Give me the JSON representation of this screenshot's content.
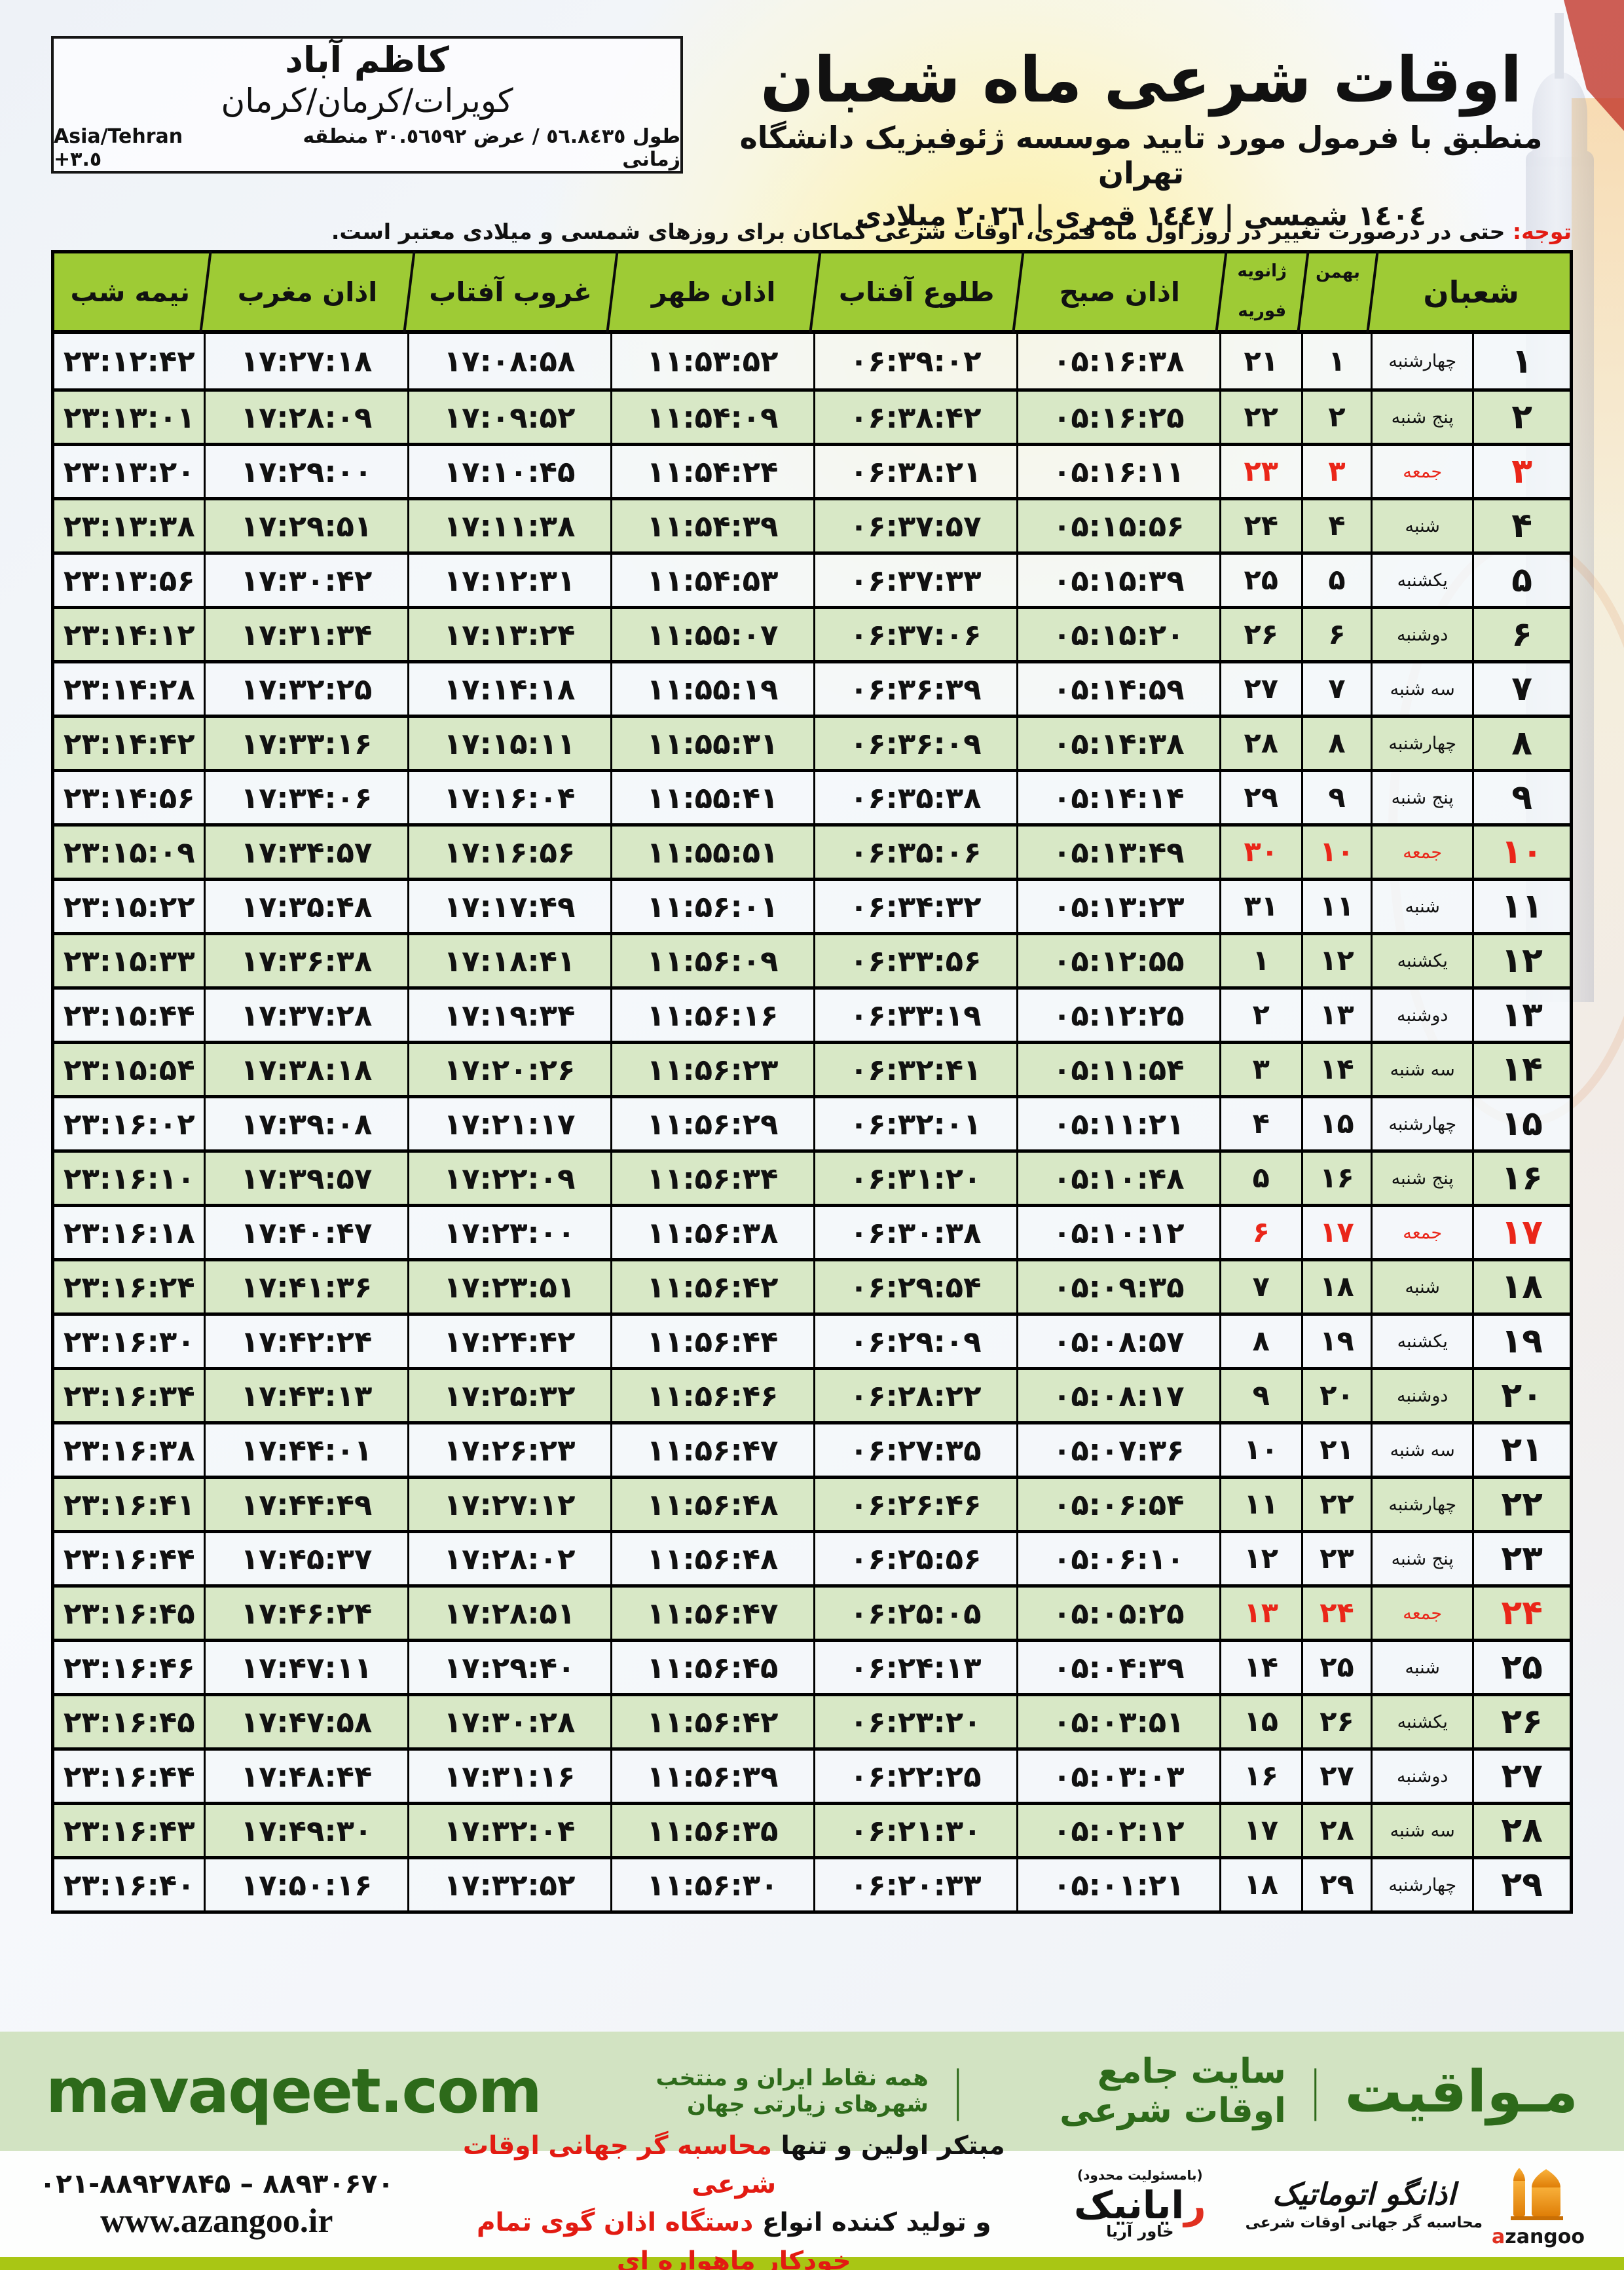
{
  "colors": {
    "header_green": "#9ecb35",
    "row_green": "#d8e8c6",
    "friday_red": "#ea2619",
    "footer_bar_bg": "#d2e3c2",
    "footer_text_green": "#2d6a1a",
    "bottom_strip_green": "#a9c614",
    "azangoo_orange": "#f59a1e"
  },
  "header": {
    "title": "اوقات شرعی ماه شعبان",
    "subtitle": "منطبق با فرمول مورد تایید موسسه ژئوفیزیک دانشگاه تهران",
    "date_line": "١٤٠٤ شمسی | ١٤٤٧ قمری | ٢٠٢٦ میلادی"
  },
  "location": {
    "name": "کاظم آباد",
    "region": "کویرات/کرمان/کرمان",
    "coords_fa": "طول ٥٦.٨٤٣٥ / عرض ٣٠.٥٦٥٩٢ منطقه زمانی",
    "coords_tz": "Asia/Tehran +٣.٥"
  },
  "notice": {
    "label": "توجه:",
    "text": " حتی در درصورت تغییر در روز اول ماه قمری، اوقات شرعی کماکان برای روزهای شمسی و میلادی معتبر است."
  },
  "table": {
    "col_headers": {
      "sha": "شعبان",
      "bahman": "بهمن",
      "jan": "ژانویه",
      "feb": "فوریه",
      "fajr": "اذان صبح",
      "sunrise": "طلوع آفتاب",
      "dhuhr": "اذان ظهر",
      "sunset": "غروب آفتاب",
      "maghrib": "اذان مغرب",
      "midnight": "نیمه شب"
    },
    "rows": [
      {
        "sha": "۱",
        "weekday": "چهارشنبه",
        "bahman": "۱",
        "greg": "۲۱",
        "fajr": "۰۵:۱۶:۳۸",
        "sunrise": "۰۶:۳۹:۰۲",
        "dhuhr": "۱۱:۵۳:۵۲",
        "sunset": "۱۷:۰۸:۵۸",
        "maghrib": "۱۷:۲۷:۱۸",
        "midnight": "۲۳:۱۲:۴۲",
        "friday": false
      },
      {
        "sha": "۲",
        "weekday": "پنج شنبه",
        "bahman": "۲",
        "greg": "۲۲",
        "fajr": "۰۵:۱۶:۲۵",
        "sunrise": "۰۶:۳۸:۴۲",
        "dhuhr": "۱۱:۵۴:۰۹",
        "sunset": "۱۷:۰۹:۵۲",
        "maghrib": "۱۷:۲۸:۰۹",
        "midnight": "۲۳:۱۳:۰۱",
        "friday": false
      },
      {
        "sha": "۳",
        "weekday": "جمعه",
        "bahman": "۳",
        "greg": "۲۳",
        "fajr": "۰۵:۱۶:۱۱",
        "sunrise": "۰۶:۳۸:۲۱",
        "dhuhr": "۱۱:۵۴:۲۴",
        "sunset": "۱۷:۱۰:۴۵",
        "maghrib": "۱۷:۲۹:۰۰",
        "midnight": "۲۳:۱۳:۲۰",
        "friday": true
      },
      {
        "sha": "۴",
        "weekday": "شنبه",
        "bahman": "۴",
        "greg": "۲۴",
        "fajr": "۰۵:۱۵:۵۶",
        "sunrise": "۰۶:۳۷:۵۷",
        "dhuhr": "۱۱:۵۴:۳۹",
        "sunset": "۱۷:۱۱:۳۸",
        "maghrib": "۱۷:۲۹:۵۱",
        "midnight": "۲۳:۱۳:۳۸",
        "friday": false
      },
      {
        "sha": "۵",
        "weekday": "یکشنبه",
        "bahman": "۵",
        "greg": "۲۵",
        "fajr": "۰۵:۱۵:۳۹",
        "sunrise": "۰۶:۳۷:۳۳",
        "dhuhr": "۱۱:۵۴:۵۳",
        "sunset": "۱۷:۱۲:۳۱",
        "maghrib": "۱۷:۳۰:۴۲",
        "midnight": "۲۳:۱۳:۵۶",
        "friday": false
      },
      {
        "sha": "۶",
        "weekday": "دوشنبه",
        "bahman": "۶",
        "greg": "۲۶",
        "fajr": "۰۵:۱۵:۲۰",
        "sunrise": "۰۶:۳۷:۰۶",
        "dhuhr": "۱۱:۵۵:۰۷",
        "sunset": "۱۷:۱۳:۲۴",
        "maghrib": "۱۷:۳۱:۳۴",
        "midnight": "۲۳:۱۴:۱۲",
        "friday": false
      },
      {
        "sha": "۷",
        "weekday": "سه شنبه",
        "bahman": "۷",
        "greg": "۲۷",
        "fajr": "۰۵:۱۴:۵۹",
        "sunrise": "۰۶:۳۶:۳۹",
        "dhuhr": "۱۱:۵۵:۱۹",
        "sunset": "۱۷:۱۴:۱۸",
        "maghrib": "۱۷:۳۲:۲۵",
        "midnight": "۲۳:۱۴:۲۸",
        "friday": false
      },
      {
        "sha": "۸",
        "weekday": "چهارشنبه",
        "bahman": "۸",
        "greg": "۲۸",
        "fajr": "۰۵:۱۴:۳۸",
        "sunrise": "۰۶:۳۶:۰۹",
        "dhuhr": "۱۱:۵۵:۳۱",
        "sunset": "۱۷:۱۵:۱۱",
        "maghrib": "۱۷:۳۳:۱۶",
        "midnight": "۲۳:۱۴:۴۲",
        "friday": false
      },
      {
        "sha": "۹",
        "weekday": "پنج شنبه",
        "bahman": "۹",
        "greg": "۲۹",
        "fajr": "۰۵:۱۴:۱۴",
        "sunrise": "۰۶:۳۵:۳۸",
        "dhuhr": "۱۱:۵۵:۴۱",
        "sunset": "۱۷:۱۶:۰۴",
        "maghrib": "۱۷:۳۴:۰۶",
        "midnight": "۲۳:۱۴:۵۶",
        "friday": false
      },
      {
        "sha": "۱۰",
        "weekday": "جمعه",
        "bahman": "۱۰",
        "greg": "۳۰",
        "fajr": "۰۵:۱۳:۴۹",
        "sunrise": "۰۶:۳۵:۰۶",
        "dhuhr": "۱۱:۵۵:۵۱",
        "sunset": "۱۷:۱۶:۵۶",
        "maghrib": "۱۷:۳۴:۵۷",
        "midnight": "۲۳:۱۵:۰۹",
        "friday": true
      },
      {
        "sha": "۱۱",
        "weekday": "شنبه",
        "bahman": "۱۱",
        "greg": "۳۱",
        "fajr": "۰۵:۱۳:۲۳",
        "sunrise": "۰۶:۳۴:۳۲",
        "dhuhr": "۱۱:۵۶:۰۱",
        "sunset": "۱۷:۱۷:۴۹",
        "maghrib": "۱۷:۳۵:۴۸",
        "midnight": "۲۳:۱۵:۲۲",
        "friday": false
      },
      {
        "sha": "۱۲",
        "weekday": "یکشنبه",
        "bahman": "۱۲",
        "greg": "۱",
        "fajr": "۰۵:۱۲:۵۵",
        "sunrise": "۰۶:۳۳:۵۶",
        "dhuhr": "۱۱:۵۶:۰۹",
        "sunset": "۱۷:۱۸:۴۱",
        "maghrib": "۱۷:۳۶:۳۸",
        "midnight": "۲۳:۱۵:۳۳",
        "friday": false
      },
      {
        "sha": "۱۳",
        "weekday": "دوشنبه",
        "bahman": "۱۳",
        "greg": "۲",
        "fajr": "۰۵:۱۲:۲۵",
        "sunrise": "۰۶:۳۳:۱۹",
        "dhuhr": "۱۱:۵۶:۱۶",
        "sunset": "۱۷:۱۹:۳۴",
        "maghrib": "۱۷:۳۷:۲۸",
        "midnight": "۲۳:۱۵:۴۴",
        "friday": false
      },
      {
        "sha": "۱۴",
        "weekday": "سه شنبه",
        "bahman": "۱۴",
        "greg": "۳",
        "fajr": "۰۵:۱۱:۵۴",
        "sunrise": "۰۶:۳۲:۴۱",
        "dhuhr": "۱۱:۵۶:۲۳",
        "sunset": "۱۷:۲۰:۲۶",
        "maghrib": "۱۷:۳۸:۱۸",
        "midnight": "۲۳:۱۵:۵۴",
        "friday": false
      },
      {
        "sha": "۱۵",
        "weekday": "چهارشنبه",
        "bahman": "۱۵",
        "greg": "۴",
        "fajr": "۰۵:۱۱:۲۱",
        "sunrise": "۰۶:۳۲:۰۱",
        "dhuhr": "۱۱:۵۶:۲۹",
        "sunset": "۱۷:۲۱:۱۷",
        "maghrib": "۱۷:۳۹:۰۸",
        "midnight": "۲۳:۱۶:۰۲",
        "friday": false
      },
      {
        "sha": "۱۶",
        "weekday": "پنج شنبه",
        "bahman": "۱۶",
        "greg": "۵",
        "fajr": "۰۵:۱۰:۴۸",
        "sunrise": "۰۶:۳۱:۲۰",
        "dhuhr": "۱۱:۵۶:۳۴",
        "sunset": "۱۷:۲۲:۰۹",
        "maghrib": "۱۷:۳۹:۵۷",
        "midnight": "۲۳:۱۶:۱۰",
        "friday": false
      },
      {
        "sha": "۱۷",
        "weekday": "جمعه",
        "bahman": "۱۷",
        "greg": "۶",
        "fajr": "۰۵:۱۰:۱۲",
        "sunrise": "۰۶:۳۰:۳۸",
        "dhuhr": "۱۱:۵۶:۳۸",
        "sunset": "۱۷:۲۳:۰۰",
        "maghrib": "۱۷:۴۰:۴۷",
        "midnight": "۲۳:۱۶:۱۸",
        "friday": true
      },
      {
        "sha": "۱۸",
        "weekday": "شنبه",
        "bahman": "۱۸",
        "greg": "۷",
        "fajr": "۰۵:۰۹:۳۵",
        "sunrise": "۰۶:۲۹:۵۴",
        "dhuhr": "۱۱:۵۶:۴۲",
        "sunset": "۱۷:۲۳:۵۱",
        "maghrib": "۱۷:۴۱:۳۶",
        "midnight": "۲۳:۱۶:۲۴",
        "friday": false
      },
      {
        "sha": "۱۹",
        "weekday": "یکشنبه",
        "bahman": "۱۹",
        "greg": "۸",
        "fajr": "۰۵:۰۸:۵۷",
        "sunrise": "۰۶:۲۹:۰۹",
        "dhuhr": "۱۱:۵۶:۴۴",
        "sunset": "۱۷:۲۴:۴۲",
        "maghrib": "۱۷:۴۲:۲۴",
        "midnight": "۲۳:۱۶:۳۰",
        "friday": false
      },
      {
        "sha": "۲۰",
        "weekday": "دوشنبه",
        "bahman": "۲۰",
        "greg": "۹",
        "fajr": "۰۵:۰۸:۱۷",
        "sunrise": "۰۶:۲۸:۲۲",
        "dhuhr": "۱۱:۵۶:۴۶",
        "sunset": "۱۷:۲۵:۳۲",
        "maghrib": "۱۷:۴۳:۱۳",
        "midnight": "۲۳:۱۶:۳۴",
        "friday": false
      },
      {
        "sha": "۲۱",
        "weekday": "سه شنبه",
        "bahman": "۲۱",
        "greg": "۱۰",
        "fajr": "۰۵:۰۷:۳۶",
        "sunrise": "۰۶:۲۷:۳۵",
        "dhuhr": "۱۱:۵۶:۴۷",
        "sunset": "۱۷:۲۶:۲۳",
        "maghrib": "۱۷:۴۴:۰۱",
        "midnight": "۲۳:۱۶:۳۸",
        "friday": false
      },
      {
        "sha": "۲۲",
        "weekday": "چهارشنبه",
        "bahman": "۲۲",
        "greg": "۱۱",
        "fajr": "۰۵:۰۶:۵۴",
        "sunrise": "۰۶:۲۶:۴۶",
        "dhuhr": "۱۱:۵۶:۴۸",
        "sunset": "۱۷:۲۷:۱۲",
        "maghrib": "۱۷:۴۴:۴۹",
        "midnight": "۲۳:۱۶:۴۱",
        "friday": false
      },
      {
        "sha": "۲۳",
        "weekday": "پنج شنبه",
        "bahman": "۲۳",
        "greg": "۱۲",
        "fajr": "۰۵:۰۶:۱۰",
        "sunrise": "۰۶:۲۵:۵۶",
        "dhuhr": "۱۱:۵۶:۴۸",
        "sunset": "۱۷:۲۸:۰۲",
        "maghrib": "۱۷:۴۵:۳۷",
        "midnight": "۲۳:۱۶:۴۴",
        "friday": false
      },
      {
        "sha": "۲۴",
        "weekday": "جمعه",
        "bahman": "۲۴",
        "greg": "۱۳",
        "fajr": "۰۵:۰۵:۲۵",
        "sunrise": "۰۶:۲۵:۰۵",
        "dhuhr": "۱۱:۵۶:۴۷",
        "sunset": "۱۷:۲۸:۵۱",
        "maghrib": "۱۷:۴۶:۲۴",
        "midnight": "۲۳:۱۶:۴۵",
        "friday": true
      },
      {
        "sha": "۲۵",
        "weekday": "شنبه",
        "bahman": "۲۵",
        "greg": "۱۴",
        "fajr": "۰۵:۰۴:۳۹",
        "sunrise": "۰۶:۲۴:۱۳",
        "dhuhr": "۱۱:۵۶:۴۵",
        "sunset": "۱۷:۲۹:۴۰",
        "maghrib": "۱۷:۴۷:۱۱",
        "midnight": "۲۳:۱۶:۴۶",
        "friday": false
      },
      {
        "sha": "۲۶",
        "weekday": "یکشنبه",
        "bahman": "۲۶",
        "greg": "۱۵",
        "fajr": "۰۵:۰۳:۵۱",
        "sunrise": "۰۶:۲۳:۲۰",
        "dhuhr": "۱۱:۵۶:۴۲",
        "sunset": "۱۷:۳۰:۲۸",
        "maghrib": "۱۷:۴۷:۵۸",
        "midnight": "۲۳:۱۶:۴۵",
        "friday": false
      },
      {
        "sha": "۲۷",
        "weekday": "دوشنبه",
        "bahman": "۲۷",
        "greg": "۱۶",
        "fajr": "۰۵:۰۳:۰۳",
        "sunrise": "۰۶:۲۲:۲۵",
        "dhuhr": "۱۱:۵۶:۳۹",
        "sunset": "۱۷:۳۱:۱۶",
        "maghrib": "۱۷:۴۸:۴۴",
        "midnight": "۲۳:۱۶:۴۴",
        "friday": false
      },
      {
        "sha": "۲۸",
        "weekday": "سه شنبه",
        "bahman": "۲۸",
        "greg": "۱۷",
        "fajr": "۰۵:۰۲:۱۲",
        "sunrise": "۰۶:۲۱:۳۰",
        "dhuhr": "۱۱:۵۶:۳۵",
        "sunset": "۱۷:۳۲:۰۴",
        "maghrib": "۱۷:۴۹:۳۰",
        "midnight": "۲۳:۱۶:۴۳",
        "friday": false
      },
      {
        "sha": "۲۹",
        "weekday": "چهارشنبه",
        "bahman": "۲۹",
        "greg": "۱۸",
        "fajr": "۰۵:۰۱:۲۱",
        "sunrise": "۰۶:۲۰:۳۳",
        "dhuhr": "۱۱:۵۶:۳۰",
        "sunset": "۱۷:۳۲:۵۲",
        "maghrib": "۱۷:۵۰:۱۶",
        "midnight": "۲۳:۱۶:۴۰",
        "friday": false
      }
    ]
  },
  "footer": {
    "brand_fa": "مـواقیت",
    "tagline1": "سایت جامع اوقات شرعی",
    "tagline2": "همه نقاط ایران و منتخب شهرهای زیارتی جهان",
    "site_latin": "mavaqeet.com",
    "phones": "۰۲۱-۸۸۹۲۷۸۴۵ – ۸۸۹۳۰۶۷۰",
    "url": "www.azangoo.ir",
    "promo1_black": "مبتکر اولین و تنها ",
    "promo1_red": "محاسبه گر جهانی اوقات شرعی",
    "promo2_black": "و تولید کننده انواع ",
    "promo2_red": "دستگاه اذان گوی تمام خودکار ماهواره ای",
    "rayanik_note": "(بامسئولیت محدود)",
    "rayanik_r": "ر",
    "rayanik_rest": "ایانیک",
    "rayanik_sub": "خاور آریا",
    "azangoo_title": "اذانگو اتوماتیک",
    "azangoo_sub": "محاسبه گر جهانی اوقات شرعی",
    "azangoo_latin_a": "a",
    "azangoo_latin_rest": "zangoo"
  }
}
